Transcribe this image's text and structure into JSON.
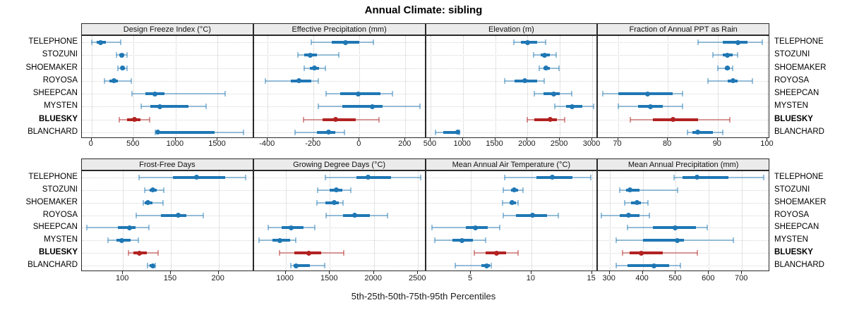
{
  "title": "Annual Climate: sibling",
  "caption": "5th-25th-50th-75th-95th Percentiles",
  "stations": [
    "TELEPHONE",
    "STOZUNI",
    "SHOEMAKER",
    "ROYOSA",
    "SHEEPCAN",
    "MYSTEN",
    "BLUESKY",
    "BLANCHARD"
  ],
  "highlight_station": "BLUESKY",
  "colors": {
    "series": "#1f77b4",
    "series_light": "rgba(31,119,180,0.45)",
    "highlight": "#b22222",
    "highlight_light": "rgba(178,34,34,0.45)",
    "strip_bg": "#ebebeb",
    "grid": "#c9c9c9",
    "border": "#2a2a2a"
  },
  "chart_data": {
    "type": "scatter",
    "subtype": "percentile-interval-dotplot",
    "percentile_labels": [
      "5th",
      "25th",
      "50th",
      "75th",
      "95th"
    ],
    "legend_position": "none",
    "grid": "dotted",
    "panels": [
      {
        "title": "Design Freeze Index (°C)",
        "grid_row": 0,
        "grid_col": 0,
        "xlim": [
          -115,
          1930
        ],
        "ticks": [
          0,
          500,
          1000,
          1500
        ],
        "values": [
          [
            0,
            60,
            110,
            170,
            350
          ],
          [
            300,
            330,
            355,
            385,
            420
          ],
          [
            310,
            345,
            370,
            395,
            425
          ],
          [
            150,
            215,
            265,
            310,
            470
          ],
          [
            480,
            640,
            755,
            870,
            1590
          ],
          [
            590,
            700,
            810,
            1150,
            1360
          ],
          [
            330,
            420,
            510,
            580,
            690
          ],
          [
            760,
            775,
            790,
            1460,
            1810
          ]
        ]
      },
      {
        "title": "Effective Precipitation (mm)",
        "grid_row": 0,
        "grid_col": 1,
        "xlim": [
          -460,
          290
        ],
        "ticks": [
          -400,
          -200,
          0,
          200
        ],
        "values": [
          [
            -210,
            -120,
            -60,
            0,
            60
          ],
          [
            -270,
            -240,
            -215,
            -185,
            -90
          ],
          [
            -240,
            -215,
            -195,
            -175,
            -150
          ],
          [
            -410,
            -300,
            -265,
            -210,
            -180
          ],
          [
            -145,
            -85,
            -5,
            90,
            145
          ],
          [
            -180,
            -75,
            55,
            100,
            265
          ],
          [
            -245,
            -160,
            -105,
            -15,
            85
          ],
          [
            -280,
            -185,
            -135,
            -105,
            -65
          ]
        ]
      },
      {
        "title": "Elevation (m)",
        "grid_row": 0,
        "grid_col": 2,
        "xlim": [
          430,
          3090
        ],
        "ticks": [
          500,
          1000,
          1500,
          2000,
          2500,
          3000
        ],
        "values": [
          [
            1790,
            1900,
            2000,
            2150,
            2280
          ],
          [
            2090,
            2200,
            2260,
            2350,
            2440
          ],
          [
            2180,
            2250,
            2290,
            2350,
            2490
          ],
          [
            1650,
            1800,
            1960,
            2150,
            2260
          ],
          [
            2110,
            2250,
            2400,
            2500,
            2680
          ],
          [
            2420,
            2600,
            2690,
            2850,
            3020
          ],
          [
            2000,
            2110,
            2350,
            2450,
            2570
          ],
          [
            580,
            700,
            920,
            935,
            950
          ]
        ]
      },
      {
        "title": "Fraction of Annual PPT as Rain",
        "grid_row": 0,
        "grid_col": 3,
        "xlim": [
          66,
          100.5
        ],
        "ticks": [
          70,
          80,
          90,
          100
        ],
        "values": [
          [
            86,
            91,
            94,
            96,
            99
          ],
          [
            89,
            91,
            92,
            93,
            94
          ],
          [
            90,
            91.5,
            92,
            92.5,
            93
          ],
          [
            88,
            92,
            93,
            94,
            97
          ],
          [
            67,
            70,
            76,
            81,
            83
          ],
          [
            70,
            74,
            76.5,
            79,
            83
          ],
          [
            72.5,
            77,
            81,
            86,
            92.5
          ],
          [
            84,
            85,
            86,
            89,
            91
          ]
        ]
      },
      {
        "title": "Frost-Free Days",
        "grid_row": 1,
        "grid_col": 0,
        "xlim": [
          57,
          237
        ],
        "ticks": [
          100,
          150,
          200
        ],
        "values": [
          [
            117,
            152,
            177,
            207,
            228
          ],
          [
            123,
            128,
            131,
            135,
            143
          ],
          [
            121,
            123,
            126,
            131,
            142
          ],
          [
            114,
            140,
            158,
            166,
            184
          ],
          [
            62,
            95,
            107,
            113,
            127
          ],
          [
            84,
            93,
            99,
            108,
            116
          ],
          [
            106,
            111,
            117,
            125,
            137
          ],
          [
            126,
            128,
            131,
            133,
            134
          ]
        ]
      },
      {
        "title": "Growing Degree Days (°C)",
        "grid_row": 1,
        "grid_col": 1,
        "xlim": [
          640,
          2590
        ],
        "ticks": [
          1000,
          1500,
          2000,
          2500
        ],
        "values": [
          [
            1450,
            1800,
            1930,
            2190,
            2530
          ],
          [
            1360,
            1500,
            1570,
            1640,
            1740
          ],
          [
            1350,
            1450,
            1550,
            1600,
            1650
          ],
          [
            1460,
            1650,
            1780,
            1950,
            2150
          ],
          [
            800,
            950,
            1060,
            1200,
            1330
          ],
          [
            700,
            850,
            930,
            1050,
            1110
          ],
          [
            930,
            1100,
            1260,
            1400,
            1660
          ],
          [
            1060,
            1090,
            1120,
            1270,
            1440
          ]
        ]
      },
      {
        "title": "Mean Annual Air Temperature (°C)",
        "grid_row": 1,
        "grid_col": 2,
        "xlim": [
          1.3,
          15.5
        ],
        "ticks": [
          5,
          10,
          15
        ],
        "values": [
          [
            7.8,
            10.4,
            11.7,
            13.4,
            14.9
          ],
          [
            7.7,
            8.3,
            8.6,
            8.9,
            9.3
          ],
          [
            7.6,
            8.2,
            8.4,
            8.7,
            8.9
          ],
          [
            7.7,
            8.7,
            10.1,
            11.3,
            12.2
          ],
          [
            1.8,
            4.6,
            5.4,
            6.4,
            7.4
          ],
          [
            2.0,
            3.5,
            4.3,
            5.2,
            6.2
          ],
          [
            5.3,
            6.2,
            7.1,
            7.9,
            8.9
          ],
          [
            3.7,
            5.9,
            6.3,
            6.6,
            6.7
          ]
        ]
      },
      {
        "title": "Mean Annual Precipitation (mm)",
        "grid_row": 1,
        "grid_col": 3,
        "xlim": [
          265,
          785
        ],
        "ticks": [
          300,
          400,
          500,
          600,
          700
        ],
        "values": [
          [
            495,
            520,
            565,
            660,
            765
          ],
          [
            330,
            350,
            362,
            390,
            505
          ],
          [
            345,
            365,
            383,
            395,
            415
          ],
          [
            275,
            330,
            357,
            390,
            420
          ],
          [
            355,
            430,
            498,
            560,
            595
          ],
          [
            320,
            400,
            505,
            525,
            675
          ],
          [
            340,
            360,
            395,
            460,
            565
          ],
          [
            320,
            355,
            433,
            480,
            515
          ]
        ]
      }
    ]
  }
}
